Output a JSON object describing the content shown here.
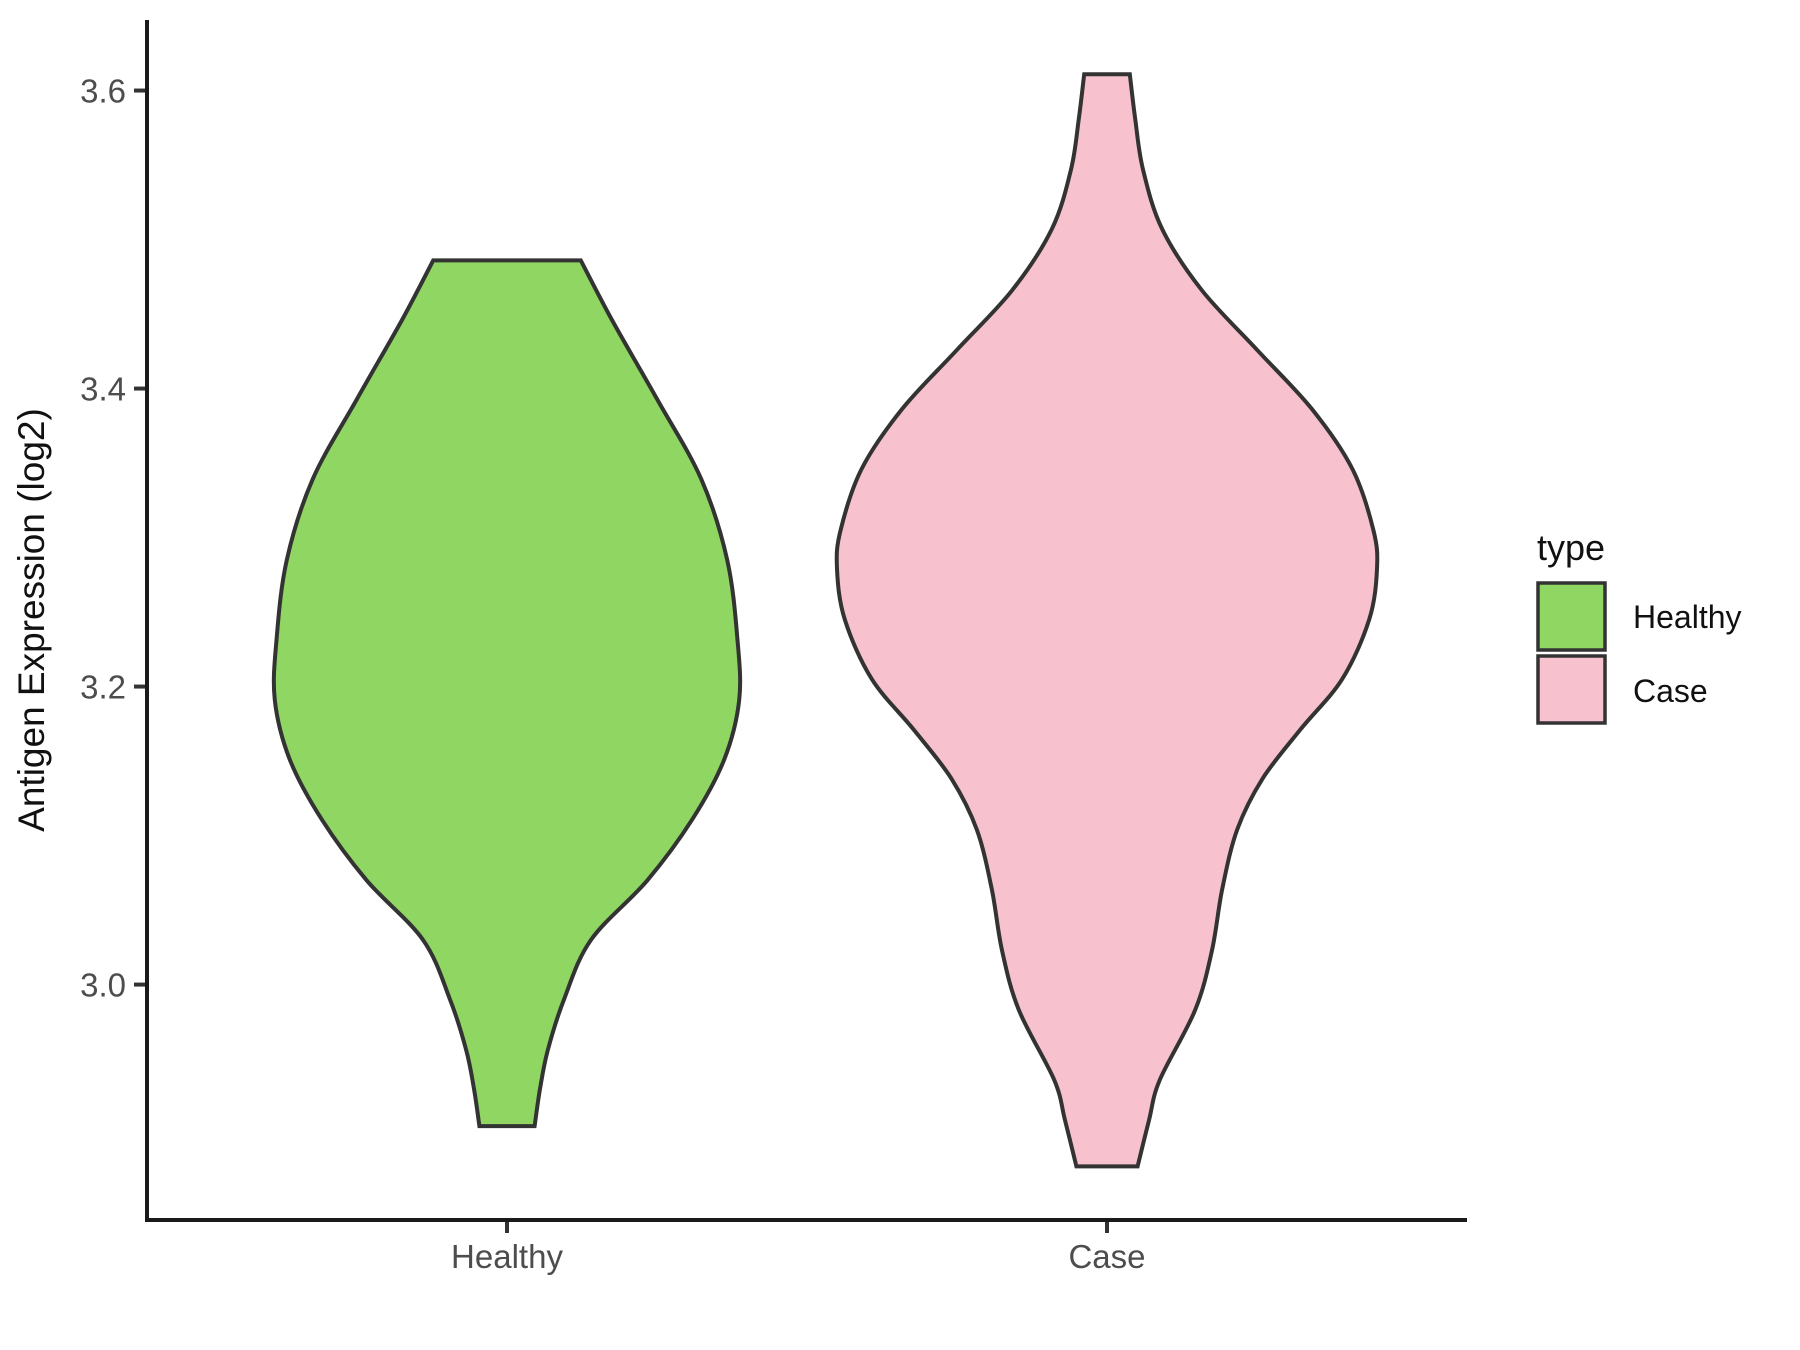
{
  "colors": {
    "background": "#FFFFFF",
    "axis": "#1A1A1A",
    "tick": "#333333",
    "tick_label": "#4D4D4D",
    "text": "#111111",
    "violin_outline": "#333333",
    "healthy_fill": "#90D663",
    "case_fill": "#F7C2CD"
  },
  "legend": {
    "title": "type",
    "position": "right",
    "items": [
      {
        "label": "Healthy",
        "color": "#90D663"
      },
      {
        "label": "Case",
        "color": "#F7C2CD"
      }
    ]
  },
  "chart_data": {
    "type": "violin",
    "title": "",
    "xlabel": "",
    "ylabel": "Antigen Expression (log2)",
    "categories": [
      "Healthy",
      "Case"
    ],
    "ylim": [
      2.842,
      3.646
    ],
    "y_ticks": [
      {
        "value": 3.0,
        "label": "3.0"
      },
      {
        "value": 3.2,
        "label": "3.2"
      },
      {
        "value": 3.4,
        "label": "3.4"
      },
      {
        "value": 3.6,
        "label": "3.6"
      }
    ],
    "grid": false,
    "legend_title": "type",
    "series": [
      {
        "name": "Healthy",
        "x": 1,
        "fill": "#90D663",
        "outline": "#333333",
        "range": [
          2.905,
          3.486
        ],
        "widest_at": 3.19,
        "max_half_width_units": 0.387,
        "profile": [
          [
            3.486,
            0.123
          ],
          [
            3.446,
            0.175
          ],
          [
            3.393,
            0.25
          ],
          [
            3.339,
            0.324
          ],
          [
            3.285,
            0.367
          ],
          [
            3.232,
            0.384
          ],
          [
            3.191,
            0.387
          ],
          [
            3.151,
            0.362
          ],
          [
            3.111,
            0.309
          ],
          [
            3.07,
            0.234
          ],
          [
            3.03,
            0.14
          ],
          [
            2.99,
            0.095
          ],
          [
            2.956,
            0.068
          ],
          [
            2.93,
            0.055
          ],
          [
            2.905,
            0.046
          ]
        ]
      },
      {
        "name": "Case",
        "x": 2,
        "fill": "#F7C2CD",
        "outline": "#333333",
        "range": [
          2.878,
          3.611
        ],
        "widest_at": 3.28,
        "max_half_width_units": 0.45,
        "profile": [
          [
            3.611,
            0.038
          ],
          [
            3.581,
            0.047
          ],
          [
            3.547,
            0.06
          ],
          [
            3.507,
            0.092
          ],
          [
            3.466,
            0.158
          ],
          [
            3.426,
            0.25
          ],
          [
            3.386,
            0.342
          ],
          [
            3.346,
            0.409
          ],
          [
            3.305,
            0.444
          ],
          [
            3.279,
            0.45
          ],
          [
            3.245,
            0.437
          ],
          [
            3.205,
            0.392
          ],
          [
            3.171,
            0.322
          ],
          [
            3.138,
            0.259
          ],
          [
            3.104,
            0.217
          ],
          [
            3.064,
            0.192
          ],
          [
            3.023,
            0.175
          ],
          [
            2.983,
            0.147
          ],
          [
            2.936,
            0.088
          ],
          [
            2.909,
            0.07
          ],
          [
            2.878,
            0.051
          ]
        ]
      }
    ]
  }
}
